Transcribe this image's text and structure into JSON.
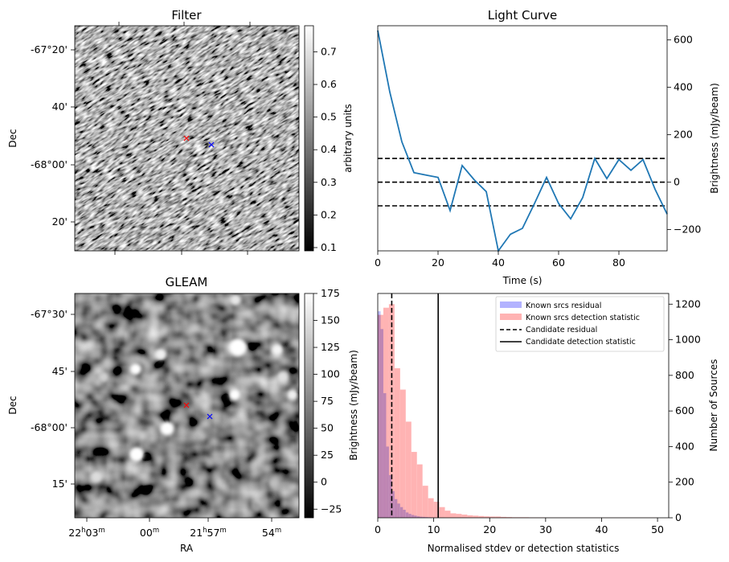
{
  "colors": {
    "light_curve": "#1f77b4",
    "known_residual": "#b3b3ff",
    "known_detection": "#ffb3b3",
    "overlap": "#b38ccc",
    "candidate_marker_a": "#ff0000",
    "candidate_marker_b": "#0000ff"
  },
  "chart_data": [
    {
      "type": "heatmap",
      "title": "Filter",
      "ylabel": "Dec",
      "ytick_labels": [
        "-67°20'",
        "40'",
        "-68°00'",
        "20'"
      ],
      "colorbar": {
        "label": "arbitrary units",
        "range": [
          0.09,
          0.78
        ],
        "ticks": [
          0.1,
          0.2,
          0.3,
          0.4,
          0.5,
          0.6,
          0.7
        ],
        "tick_labels": [
          "0.1",
          "0.2",
          "0.3",
          "0.4",
          "0.5",
          "0.6",
          "0.7"
        ]
      },
      "markers": [
        {
          "symbol": "x",
          "color": "red"
        },
        {
          "symbol": "x",
          "color": "blue"
        }
      ]
    },
    {
      "type": "line",
      "title": "Light Curve",
      "xlabel": "Time (s)",
      "ylabel": "Brightness (mJy/beam)",
      "xlim": [
        0,
        96
      ],
      "ylim": [
        -290,
        660
      ],
      "xticks": [
        0,
        20,
        40,
        60,
        80
      ],
      "yticks": [
        -200,
        0,
        200,
        400,
        600
      ],
      "x": [
        0,
        4,
        8,
        12,
        16,
        20,
        24,
        28,
        32,
        36,
        40,
        44,
        48,
        52,
        56,
        60,
        64,
        68,
        72,
        76,
        80,
        84,
        88,
        92,
        96
      ],
      "values": [
        640,
        380,
        170,
        40,
        30,
        20,
        -120,
        70,
        10,
        -40,
        -290,
        -220,
        -195,
        -90,
        20,
        -90,
        -155,
        -65,
        100,
        15,
        95,
        50,
        95,
        -30,
        -135
      ],
      "hlines": [
        {
          "y": 100,
          "style": "dashed"
        },
        {
          "y": 0,
          "style": "dashed"
        },
        {
          "y": -100,
          "style": "dashed"
        }
      ]
    },
    {
      "type": "heatmap",
      "title": "GLEAM",
      "xlabel": "RA",
      "ylabel": "Dec",
      "xtick_labels": [
        {
          "h": "22",
          "m": "03"
        },
        {
          "h": "",
          "m": "00"
        },
        {
          "h": "21",
          "m": "57"
        },
        {
          "h": "",
          "m": "54"
        }
      ],
      "ytick_labels": [
        "-67°30'",
        "45'",
        "-68°00'",
        "15'"
      ],
      "colorbar": {
        "label": "Brightness (mJy/beam)",
        "range": [
          -33,
          175
        ],
        "ticks": [
          -25,
          0,
          25,
          50,
          75,
          100,
          125,
          150,
          175
        ],
        "tick_labels": [
          "−25",
          "0",
          "25",
          "50",
          "75",
          "100",
          "125",
          "150",
          "175"
        ]
      },
      "markers": [
        {
          "symbol": "x",
          "color": "red"
        },
        {
          "symbol": "x",
          "color": "blue"
        }
      ]
    },
    {
      "type": "bar",
      "xlabel": "Normalised stdev or detection statistics",
      "ylabel": "Number of Sources",
      "xlim": [
        0,
        52
      ],
      "ylim": [
        0,
        1260
      ],
      "xticks": [
        0,
        10,
        20,
        30,
        40,
        50
      ],
      "yticks": [
        0,
        200,
        400,
        600,
        800,
        1000,
        1200
      ],
      "legend_position": "top-right",
      "series": [
        {
          "name": "Known srcs residual",
          "bin_width": 0.5,
          "bin_start": 0,
          "values": [
            1160,
            1060,
            700,
            400,
            240,
            150,
            105,
            80,
            60,
            45,
            30,
            22,
            16,
            12,
            8,
            6,
            5,
            4,
            3,
            2,
            2,
            1,
            1,
            1
          ]
        },
        {
          "name": "Known srcs detection statistic",
          "bin_width": 1,
          "bin_start": 0,
          "values": [
            1140,
            1180,
            1200,
            840,
            720,
            540,
            370,
            300,
            180,
            110,
            90,
            60,
            40,
            25,
            22,
            18,
            14,
            12,
            10,
            8,
            7,
            7,
            5,
            4,
            3,
            3,
            3,
            2,
            2,
            2,
            1,
            1,
            1,
            1,
            1,
            1,
            1,
            1,
            1,
            1,
            1,
            1,
            1,
            1,
            1,
            1,
            1,
            1,
            1,
            1
          ]
        }
      ],
      "vlines": [
        {
          "name": "Candidate residual",
          "x": 2.5,
          "style": "dashed"
        },
        {
          "name": "Candidate detection statistic",
          "x": 10.8,
          "style": "solid"
        }
      ]
    }
  ]
}
